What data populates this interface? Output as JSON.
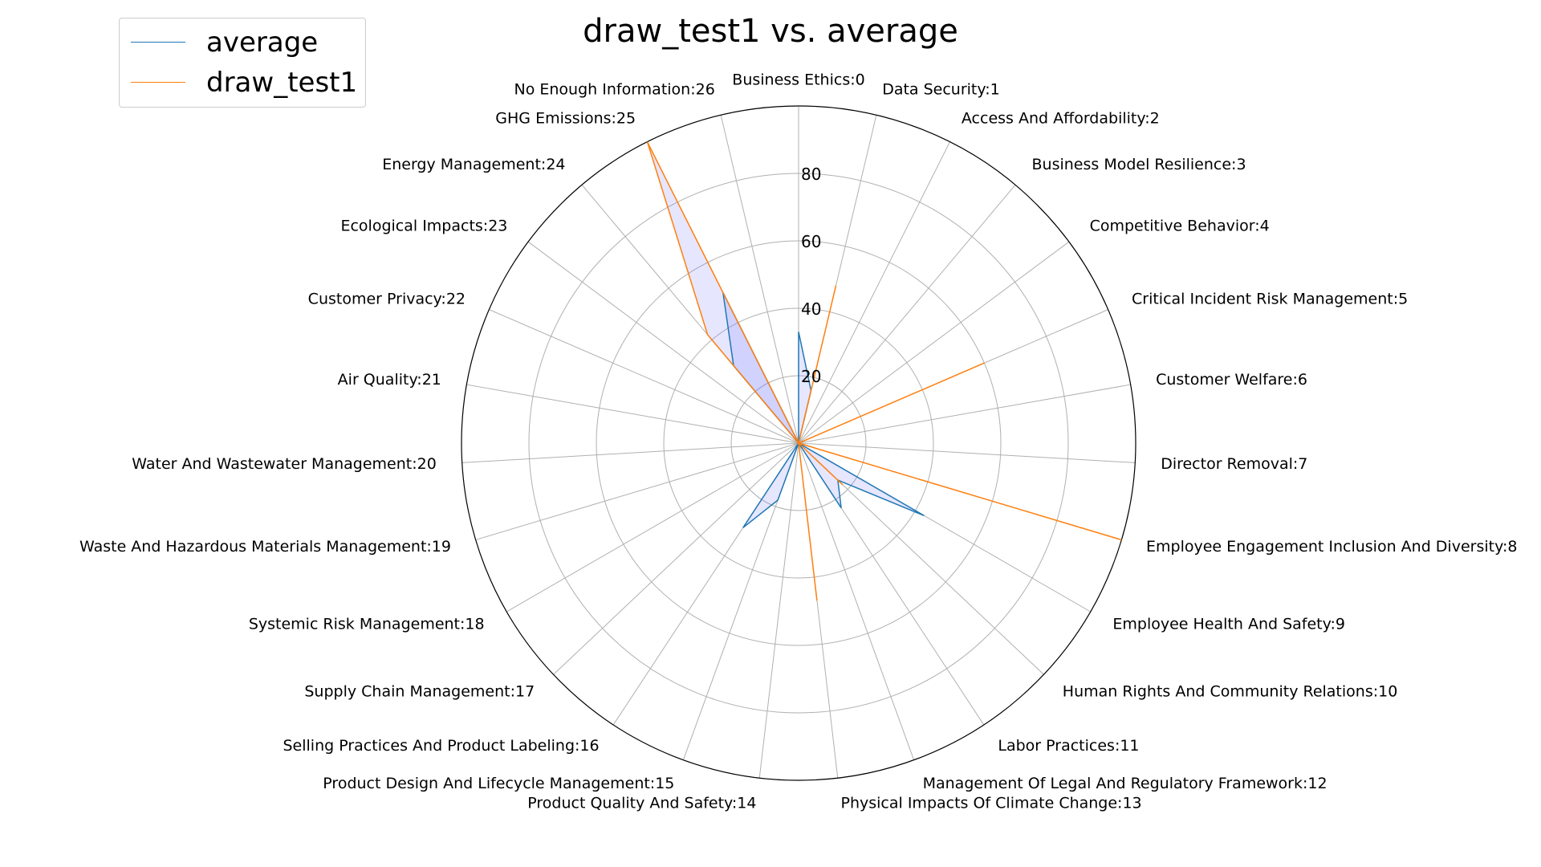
{
  "chart_data": {
    "type": "radar",
    "title": "draw_test1 vs. average",
    "categories": [
      "Business Ethics:0",
      "Data Security:1",
      "Access And Affordability:2",
      "Business Model Resilience:3",
      "Competitive Behavior:4",
      "Critical Incident Risk Management:5",
      "Customer Welfare:6",
      "Director Removal:7",
      "Employee Engagement Inclusion And Diversity:8",
      "Employee Health And Safety:9",
      "Human Rights And Community Relations:10",
      "Labor Practices:11",
      "Management Of Legal And Regulatory Framework:12",
      "Physical Impacts Of Climate Change:13",
      "Product Quality And Safety:14",
      "Product Design And Lifecycle Management:15",
      "Selling Practices And Product Labeling:16",
      "Supply Chain Management:17",
      "Systemic Risk Management:18",
      "Waste And Hazardous Materials Management:19",
      "Water And Wastewater Management:20",
      "Air Quality:21",
      "Customer Privacy:22",
      "Ecological Impacts:23",
      "Energy Management:24",
      "GHG Emissions:25",
      "No Enough Information:26"
    ],
    "series": [
      {
        "name": "average",
        "color": "#1f77b4",
        "values": [
          33,
          16,
          0,
          0,
          0,
          0,
          0,
          0,
          0,
          43,
          16,
          23,
          0,
          0,
          0,
          18,
          30,
          0,
          0,
          0,
          0,
          0,
          0,
          0,
          30,
          50,
          0
        ]
      },
      {
        "name": "draw_test1",
        "color": "#ff7f0e",
        "values": [
          0,
          48,
          0,
          0,
          0,
          60,
          0,
          0,
          100,
          0,
          18,
          0,
          0,
          47,
          0,
          0,
          0,
          0,
          0,
          0,
          0,
          0,
          0,
          0,
          42,
          100,
          0
        ]
      }
    ],
    "rticks": [
      20,
      40,
      60,
      80
    ],
    "rlim": [
      0,
      100
    ],
    "legend": "top-left",
    "grid": true,
    "fill_color": "#8080ff"
  }
}
